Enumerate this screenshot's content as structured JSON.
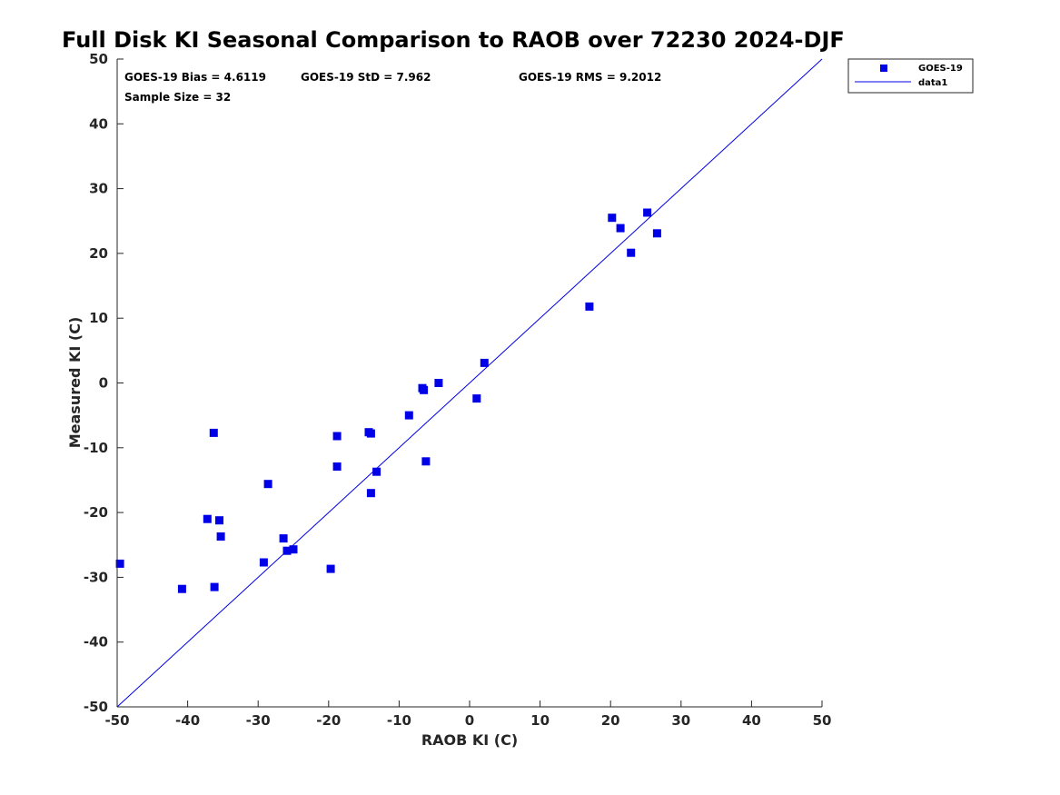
{
  "chart_data": {
    "type": "scatter",
    "title": "Full Disk KI Seasonal Comparison to RAOB over 72230 2024-DJF",
    "xlabel": "RAOB KI (C)",
    "ylabel": "Measured KI (C)",
    "xlim": [
      -50,
      50
    ],
    "ylim": [
      -50,
      50
    ],
    "xticks": [
      "-50",
      "-40",
      "-30",
      "-20",
      "-10",
      "0",
      "10",
      "20",
      "30",
      "40",
      "50"
    ],
    "yticks": [
      "-50",
      "-40",
      "-30",
      "-20",
      "-10",
      "0",
      "10",
      "20",
      "30",
      "40",
      "50"
    ],
    "grid": false,
    "legend_position": "top-right-outside",
    "stats": {
      "bias": "GOES-19 Bias = 4.6119",
      "std": "GOES-19 StD = 7.962",
      "rms": "GOES-19 RMS = 9.2012",
      "sample": "Sample Size = 32"
    },
    "series": [
      {
        "name": "GOES-19",
        "kind": "scatter",
        "marker": "square",
        "color": "#0000e6",
        "points": [
          [
            -49.6,
            -27.9
          ],
          [
            -40.8,
            -31.8
          ],
          [
            -37.2,
            -21.0
          ],
          [
            -36.3,
            -7.7
          ],
          [
            -36.2,
            -31.5
          ],
          [
            -35.5,
            -21.2
          ],
          [
            -35.3,
            -23.7
          ],
          [
            -29.2,
            -27.7
          ],
          [
            -28.6,
            -15.6
          ],
          [
            -26.4,
            -24.0
          ],
          [
            -25.9,
            -25.9
          ],
          [
            -25.0,
            -25.7
          ],
          [
            -19.7,
            -28.7
          ],
          [
            -18.8,
            -8.2
          ],
          [
            -18.8,
            -12.9
          ],
          [
            -14.3,
            -7.6
          ],
          [
            -14.0,
            -7.8
          ],
          [
            -14.0,
            -17.0
          ],
          [
            -13.2,
            -13.7
          ],
          [
            -8.6,
            -5.0
          ],
          [
            -6.7,
            -0.8
          ],
          [
            -6.5,
            -1.1
          ],
          [
            -6.2,
            -12.1
          ],
          [
            -4.4,
            0.0
          ],
          [
            1.0,
            -2.4
          ],
          [
            2.1,
            3.1
          ],
          [
            17.0,
            11.8
          ],
          [
            20.2,
            25.5
          ],
          [
            21.4,
            23.9
          ],
          [
            22.9,
            20.1
          ],
          [
            25.2,
            26.3
          ],
          [
            26.6,
            23.1
          ]
        ]
      },
      {
        "name": "data1",
        "kind": "line",
        "color": "#0000e6",
        "x": [
          -50,
          50
        ],
        "y": [
          -50,
          50
        ]
      }
    ]
  }
}
